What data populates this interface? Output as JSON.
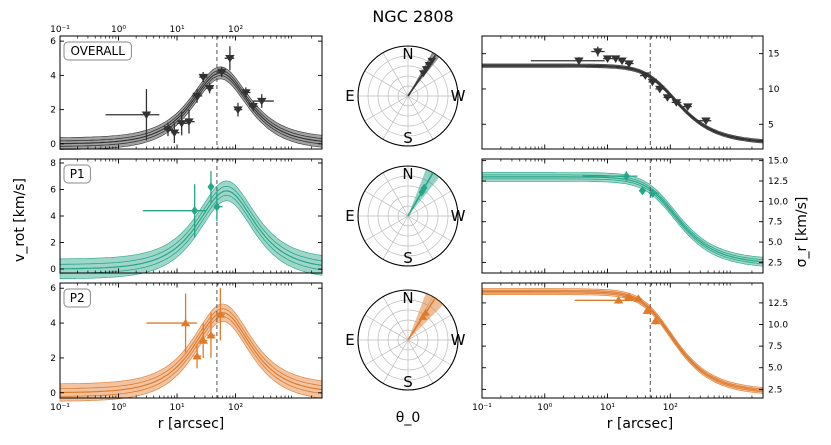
{
  "title": "NGC 2808",
  "xlabel": "r [arcsec]",
  "ylabel_left": "v_rot [km/s]",
  "ylabel_right": "σ_r [km/s]",
  "theta_label": "θ_0",
  "compass": {
    "n": "N",
    "s": "S",
    "e": "E",
    "w": "W"
  },
  "colors": {
    "OVERALL": "#333333",
    "P1": "#27a688",
    "P2": "#e07b2c"
  },
  "chart_data": {
    "type": "scatter",
    "x_scale": "log",
    "xlim": [
      0.1,
      3000
    ],
    "half_light_radius_arcsec": 48,
    "x_ticks": [
      0.1,
      1,
      10,
      100
    ],
    "x_tick_labels": [
      "10⁻¹",
      "10⁰",
      "10¹",
      "10²"
    ],
    "rows": [
      {
        "name": "OVERALL",
        "marker": "down-triangle",
        "vrot": {
          "ylim": [
            -0.3,
            6.3
          ],
          "yticks": [
            0,
            2,
            4,
            6
          ],
          "model_peak": 4.15,
          "model_peak_r": 55,
          "band": 0.35,
          "points": [
            {
              "r": 3,
              "v": 1.7,
              "xerr": [
                0.6,
                5
              ],
              "yerr": 1.5
            },
            {
              "r": 7,
              "v": 0.85,
              "xerr": [
                6,
                8.5
              ],
              "yerr": 0.4
            },
            {
              "r": 9,
              "v": 0.65,
              "xerr": [
                8,
                11
              ],
              "yerr": 0.6
            },
            {
              "r": 12,
              "v": 1.2,
              "xerr": [
                10,
                15
              ],
              "yerr": 0.7
            },
            {
              "r": 16,
              "v": 1.3,
              "xerr": [
                13,
                20
              ],
              "yerr": 0.7
            },
            {
              "r": 22,
              "v": 2.8,
              "xerr": [
                18,
                27
              ],
              "yerr": 0.4
            },
            {
              "r": 28,
              "v": 3.9,
              "xerr": [
                24,
                33
              ],
              "yerr": 0.3
            },
            {
              "r": 36,
              "v": 3.25,
              "xerr": [
                31,
                42
              ],
              "yerr": 0.3
            },
            {
              "r": 58,
              "v": 4.2,
              "xerr": [
                48,
                70
              ],
              "yerr": 0.3
            },
            {
              "r": 80,
              "v": 5,
              "xerr": [
                65,
                95
              ],
              "yerr": 0.7
            },
            {
              "r": 110,
              "v": 2,
              "xerr": [
                95,
                130
              ],
              "yerr": 0.4
            },
            {
              "r": 150,
              "v": 3,
              "xerr": [
                125,
                180
              ],
              "yerr": 0.3
            },
            {
              "r": 200,
              "v": 2.2,
              "xerr": [
                170,
                240
              ],
              "yerr": 0.3
            },
            {
              "r": 280,
              "v": 2.5,
              "xerr": [
                200,
                450
              ],
              "yerr": 0.4
            }
          ]
        },
        "theta": {
          "angle_deg": 56,
          "spread_deg": 5
        },
        "sigma": {
          "ylim": [
            1.5,
            17.5
          ],
          "yticks": [
            5,
            10,
            15
          ],
          "ytick_labels": [
            "5",
            "10",
            "15"
          ],
          "model_s0": 13.3,
          "model_rc": 80,
          "model_tail": 2.3,
          "band": 0.25,
          "points": [
            {
              "r": 3.5,
              "s": 14,
              "xerr": [
                0.6,
                9
              ],
              "yerr": 0.5
            },
            {
              "r": 7,
              "s": 15.3,
              "xerr": [
                5.5,
                9
              ],
              "yerr": 0.7
            },
            {
              "r": 10,
              "s": 14.3,
              "xerr": [
                8.5,
                12
              ],
              "yerr": 0.3
            },
            {
              "r": 13.5,
              "s": 14.3,
              "xerr": [
                12,
                15.5
              ],
              "yerr": 0.3
            },
            {
              "r": 17,
              "s": 14,
              "xerr": [
                15,
                19
              ],
              "yerr": 0.3
            },
            {
              "r": 22,
              "s": 13.6,
              "xerr": [
                19,
                26
              ],
              "yerr": 0.3
            },
            {
              "r": 40,
              "s": 11.9,
              "xerr": [
                33,
                48
              ],
              "yerr": 0.4
            },
            {
              "r": 52,
              "s": 11,
              "xerr": [
                45,
                60
              ],
              "yerr": 0.4
            },
            {
              "r": 68,
              "s": 10,
              "xerr": [
                58,
                80
              ],
              "yerr": 0.4
            },
            {
              "r": 90,
              "s": 8.8,
              "xerr": [
                78,
                105
              ],
              "yerr": 0.4
            },
            {
              "r": 125,
              "s": 8.1,
              "xerr": [
                105,
                150
              ],
              "yerr": 0.4
            },
            {
              "r": 190,
              "s": 7.5,
              "xerr": [
                160,
                220
              ],
              "yerr": 0.4
            },
            {
              "r": 370,
              "s": 5.5,
              "xerr": [
                270,
                450
              ],
              "yerr": 0.4
            }
          ]
        }
      },
      {
        "name": "P1",
        "marker": "diamond",
        "vrot": {
          "ylim": [
            -0.3,
            8.3
          ],
          "yticks": [
            0,
            2,
            4,
            6,
            8
          ],
          "model_peak": 5.9,
          "model_peak_r": 70,
          "band": 0.75,
          "points": [
            {
              "r": 20,
              "v": 4.4,
              "xerr": [
                2.6,
                32
              ],
              "yerr": 2
            },
            {
              "r": 38,
              "v": 6.2,
              "xerr": [
                34,
                42
              ],
              "yerr": 1.2
            },
            {
              "r": 48,
              "v": 4.7,
              "xerr": [
                42,
                60
              ],
              "yerr": 1.1
            }
          ]
        },
        "theta": {
          "angle_deg": 60,
          "spread_deg": 9
        },
        "sigma": {
          "ylim": [
            1.2,
            15.2
          ],
          "yticks": [
            2.5,
            5,
            7.5,
            10,
            12.5,
            15
          ],
          "ytick_labels": [
            "2.5",
            "5.0",
            "7.5",
            "10.0",
            "12.5",
            "15.0"
          ],
          "model_s0": 13,
          "model_rc": 80,
          "model_tail": 2.3,
          "band": 0.55,
          "points": [
            {
              "r": 20,
              "s": 13.1,
              "xerr": [
                4,
                30
              ],
              "yerr": 0.6
            },
            {
              "r": 36,
              "s": 11.3,
              "xerr": [
                32,
                41
              ],
              "yerr": 0.4
            },
            {
              "r": 52,
              "s": 11,
              "xerr": [
                46,
                65
              ],
              "yerr": 0.5
            }
          ]
        }
      },
      {
        "name": "P2",
        "marker": "up-triangle",
        "vrot": {
          "ylim": [
            -0.3,
            6.3
          ],
          "yticks": [
            0,
            2,
            4,
            6
          ],
          "model_peak": 4.6,
          "model_peak_r": 60,
          "band": 0.5,
          "points": [
            {
              "r": 14,
              "v": 4,
              "xerr": [
                3,
                22
              ],
              "yerr": 1.7
            },
            {
              "r": 22,
              "v": 2.1,
              "xerr": [
                19,
                26
              ],
              "yerr": 0.7
            },
            {
              "r": 28,
              "v": 3,
              "xerr": [
                24,
                33
              ],
              "yerr": 1
            },
            {
              "r": 38,
              "v": 3.3,
              "xerr": [
                33,
                45
              ],
              "yerr": 1.3
            },
            {
              "r": 55,
              "v": 4.5,
              "xerr": [
                47,
                65
              ],
              "yerr": 1.5
            }
          ]
        },
        "theta": {
          "angle_deg": 57,
          "spread_deg": 12
        },
        "sigma": {
          "ylim": [
            1.5,
            14.8
          ],
          "yticks": [
            2.5,
            5,
            7.5,
            10,
            12.5
          ],
          "ytick_labels": [
            "2.5",
            "5.0",
            "7.5",
            "10.0",
            "12.5"
          ],
          "model_s0": 13.8,
          "model_rc": 70,
          "model_tail": 2.1,
          "band": 0.35,
          "points": [
            {
              "r": 15,
              "s": 12.8,
              "xerr": [
                3,
                26
              ],
              "yerr": 0.4
            },
            {
              "r": 22,
              "s": 13.2,
              "xerr": [
                18,
                26
              ],
              "yerr": 0.4
            },
            {
              "r": 31,
              "s": 13,
              "xerr": [
                27,
                35
              ],
              "yerr": 0.4
            },
            {
              "r": 43,
              "s": 11.6,
              "xerr": [
                39,
                47
              ],
              "yerr": 0.4
            },
            {
              "r": 58,
              "s": 10.4,
              "xerr": [
                53,
                65
              ],
              "yerr": 0.4
            }
          ]
        }
      }
    ]
  }
}
